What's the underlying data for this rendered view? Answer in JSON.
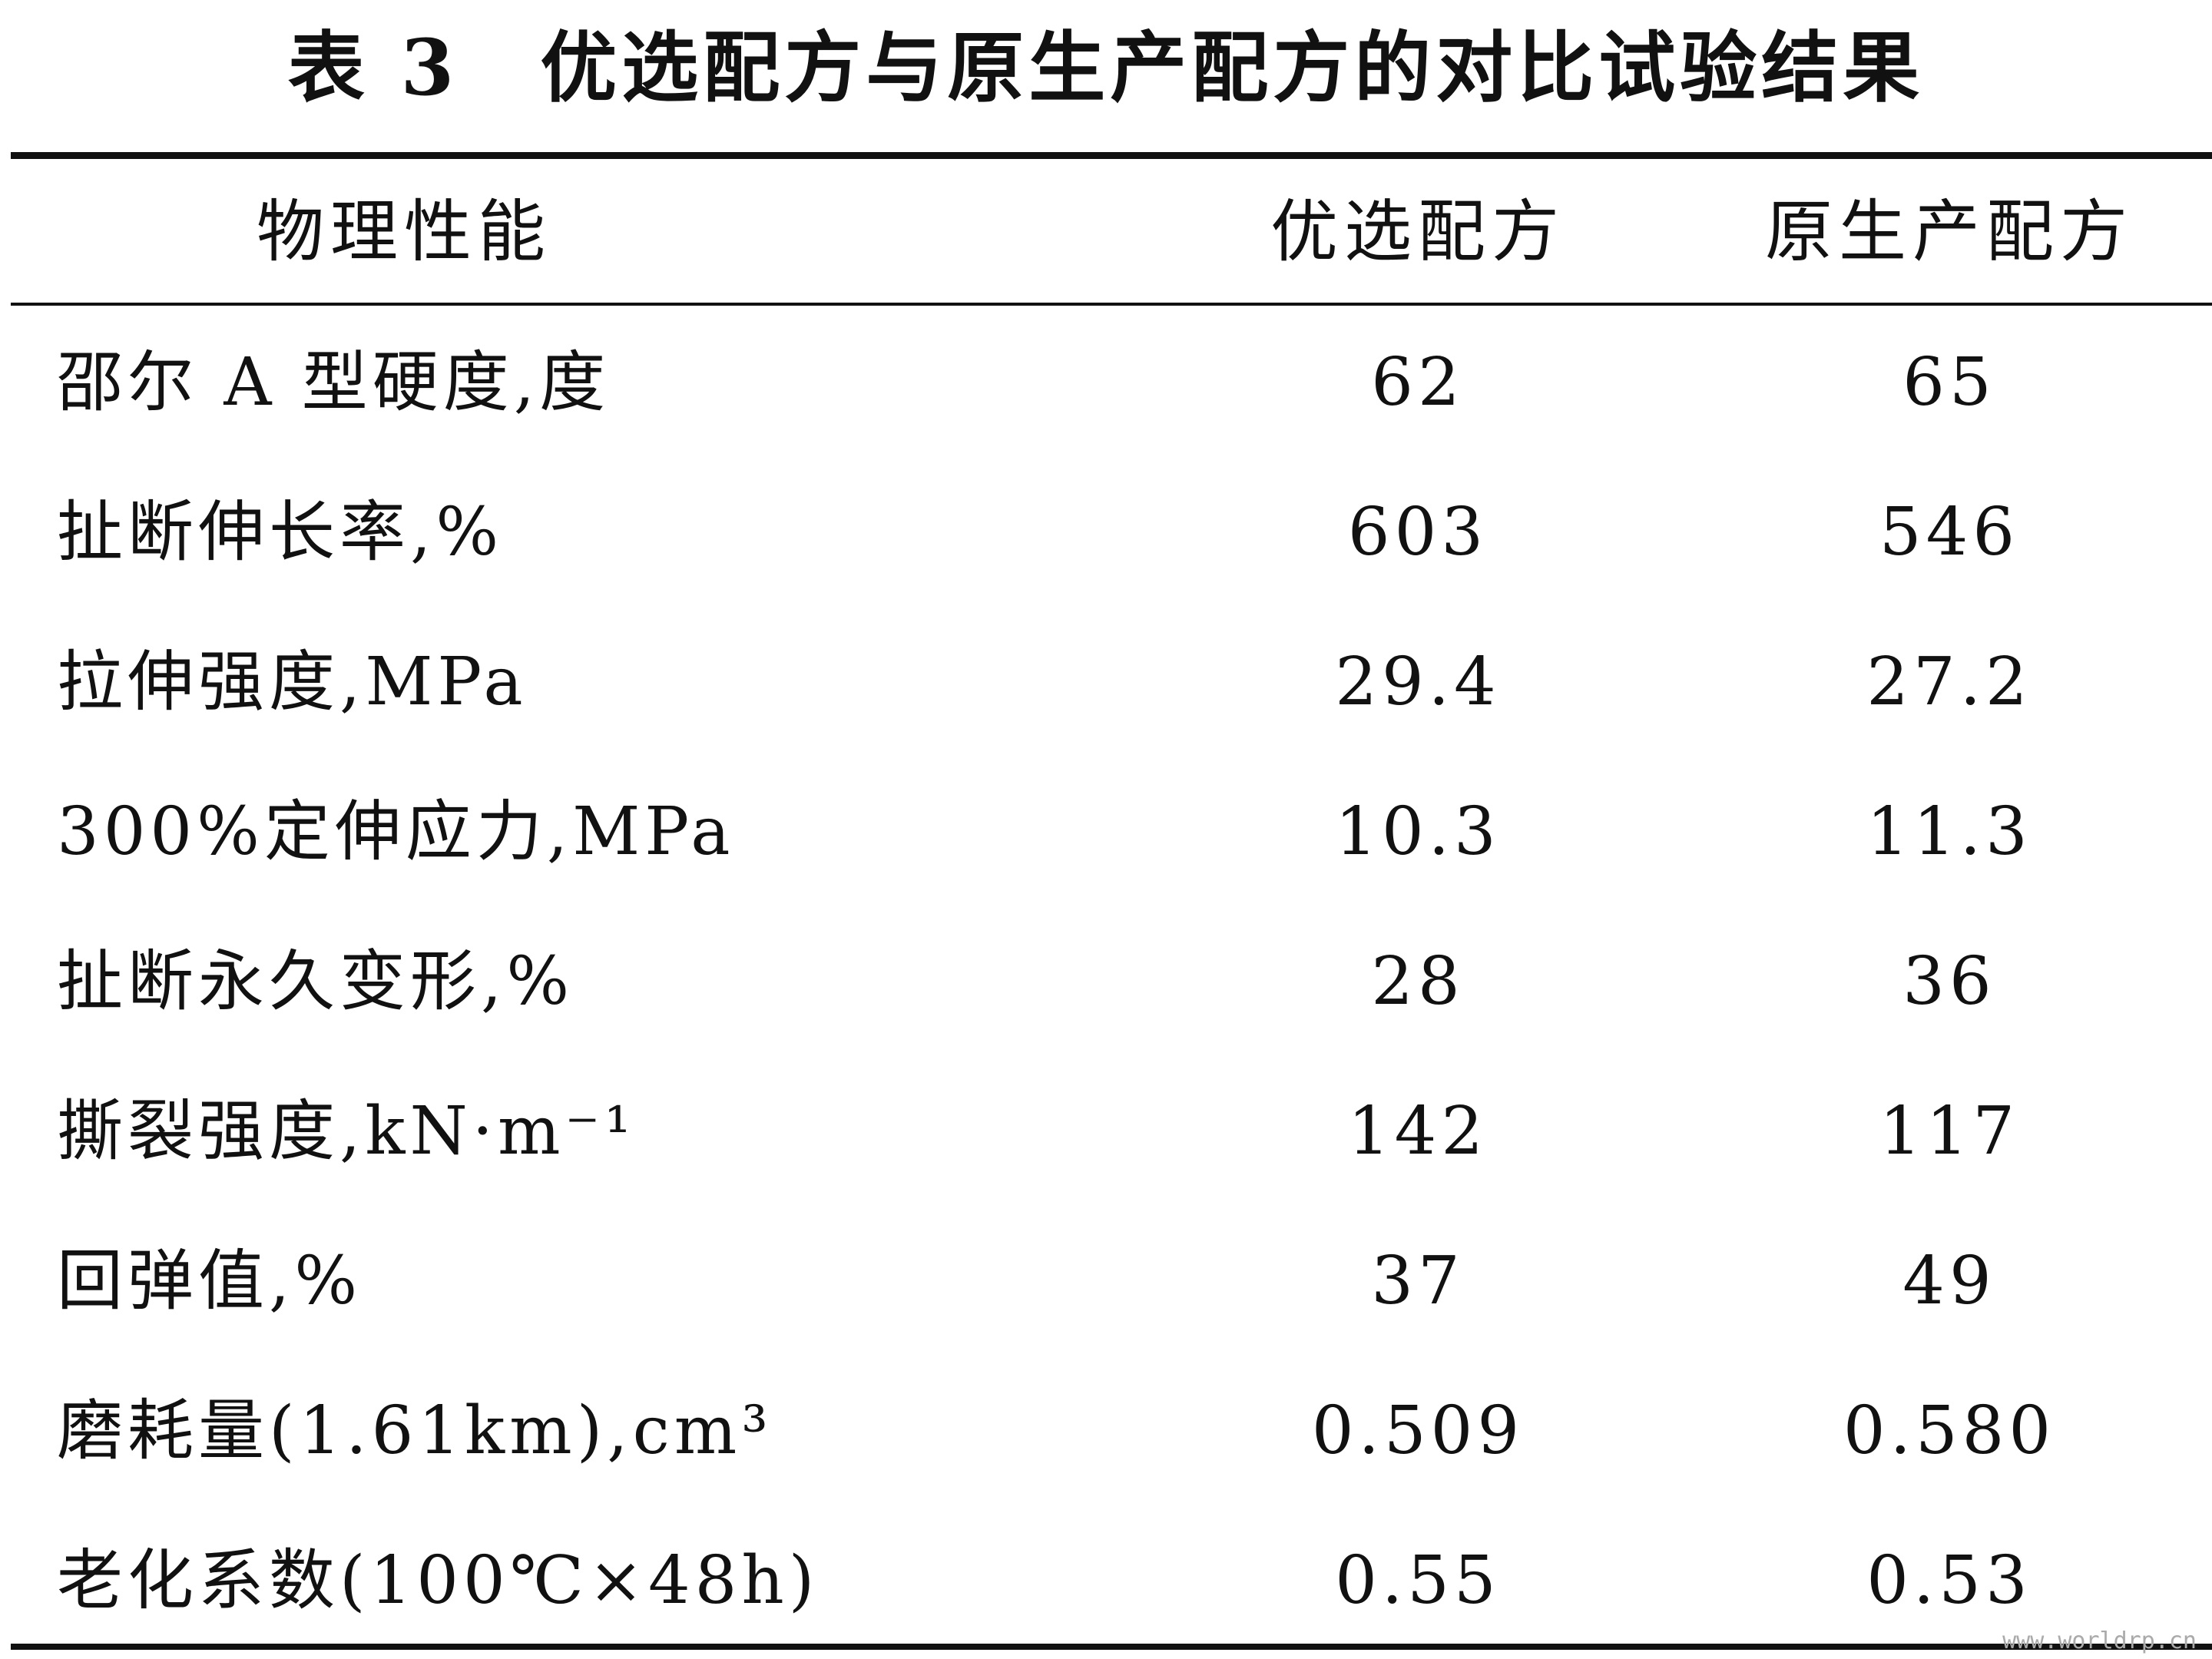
{
  "header": {
    "title": "表 3　优选配方与原生产配方的对比试验结果"
  },
  "table": {
    "columns": [
      "物理性能",
      "优选配方",
      "原生产配方"
    ],
    "rows": [
      [
        "邵尔 A 型硬度,度",
        "62",
        "65"
      ],
      [
        "扯断伸长率,%",
        "603",
        "546"
      ],
      [
        "拉伸强度,MPa",
        "29.4",
        "27.2"
      ],
      [
        "300%定伸应力,MPa",
        "10.3",
        "11.3"
      ],
      [
        "扯断永久变形,%",
        "28",
        "36"
      ],
      [
        "撕裂强度,kN·m⁻¹",
        "142",
        "117"
      ],
      [
        "回弹值,%",
        "37",
        "49"
      ],
      [
        "磨耗量(1.61km),cm³",
        "0.509",
        "0.580"
      ],
      [
        "老化系数(100℃×48h)",
        "0.55",
        "0.53"
      ]
    ]
  },
  "watermark": "www.worldrp.cn"
}
